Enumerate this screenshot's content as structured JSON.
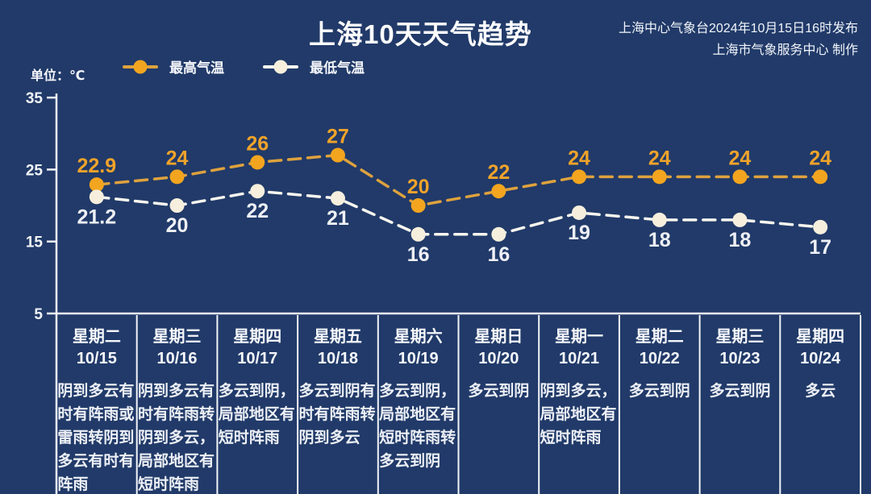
{
  "header": {
    "title": "上海10天天气趋势",
    "credit_line1": "上海中心气象台2024年10月15日16时发布",
    "credit_line2": "上海市气象服务中心 制作"
  },
  "unit_label": "单位：℃",
  "legend": [
    {
      "name": "max-temp",
      "label": "最高气温"
    },
    {
      "name": "min-temp",
      "label": "最低气温"
    }
  ],
  "colors": {
    "background": "#213a69",
    "axis": "#f2f4f8",
    "max_line": "#dea23e",
    "max_marker": "#f3a51f",
    "max_label": "#f0a32a",
    "min_line": "#f8f6ef",
    "min_marker": "#f6efdd",
    "min_label": "#eef0f5"
  },
  "chart_data": {
    "type": "line",
    "title": "上海10天天气趋势",
    "xlabel": "",
    "ylabel": "单位：℃",
    "ylim": [
      5,
      35
    ],
    "yticks": [
      35,
      25,
      15,
      5
    ],
    "grid": false,
    "legend_position": "top",
    "line_style": "dashed",
    "x": [
      "10/15",
      "10/16",
      "10/17",
      "10/18",
      "10/19",
      "10/20",
      "10/21",
      "10/22",
      "10/23",
      "10/24"
    ],
    "weekdays": [
      "星期二",
      "星期三",
      "星期四",
      "星期五",
      "星期六",
      "星期日",
      "星期一",
      "星期二",
      "星期三",
      "星期四"
    ],
    "series": [
      {
        "name": "最高气温",
        "values": [
          22.9,
          24,
          26,
          27,
          20,
          22,
          24,
          24,
          24,
          24
        ],
        "line_color": "#dea23e",
        "marker_color": "#f3a51f",
        "label_color": "#f0a32a",
        "label_position": "above"
      },
      {
        "name": "最低气温",
        "values": [
          21.2,
          20,
          22,
          21,
          16,
          16,
          19,
          18,
          18,
          17
        ],
        "line_color": "#f8f6ef",
        "marker_color": "#f6efdd",
        "label_color": "#eef0f5",
        "label_position": "below"
      }
    ]
  },
  "days": [
    {
      "weekday": "星期二",
      "date": "10/15",
      "weather": "阴到多云有时有阵雨或雷雨转阴到多云有时有阵雨"
    },
    {
      "weekday": "星期三",
      "date": "10/16",
      "weather": "阴到多云有时有阵雨转阴到多云，局部地区有短时阵雨"
    },
    {
      "weekday": "星期四",
      "date": "10/17",
      "weather": "多云到阴，局部地区有短时阵雨"
    },
    {
      "weekday": "星期五",
      "date": "10/18",
      "weather": "多云到阴有时有阵雨转阴到多云"
    },
    {
      "weekday": "星期六",
      "date": "10/19",
      "weather": "多云到阴，局部地区有短时阵雨转多云到阴"
    },
    {
      "weekday": "星期日",
      "date": "10/20",
      "weather": "多云到阴"
    },
    {
      "weekday": "星期一",
      "date": "10/21",
      "weather": "阴到多云，局部地区有短时阵雨"
    },
    {
      "weekday": "星期二",
      "date": "10/22",
      "weather": "多云到阴"
    },
    {
      "weekday": "星期三",
      "date": "10/23",
      "weather": "多云到阴"
    },
    {
      "weekday": "星期四",
      "date": "10/24",
      "weather": "多云"
    }
  ]
}
